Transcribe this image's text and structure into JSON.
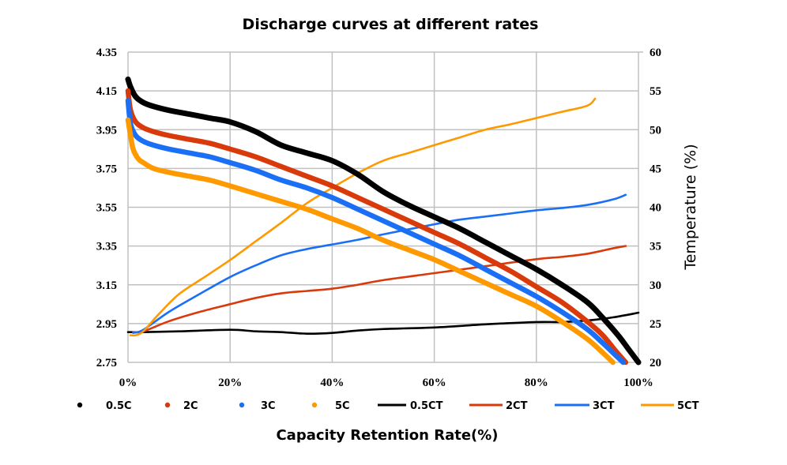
{
  "chart_data": {
    "type": "line",
    "title": "Discharge curves at different rates",
    "xlabel": "Capacity Retention Rate(%)",
    "ylabel": "",
    "y2label": "Temperature (%)",
    "xlim": [
      0,
      100
    ],
    "ylim": [
      2.75,
      4.35
    ],
    "y2lim": [
      20,
      60
    ],
    "grid": true,
    "legend_position": "bottom",
    "x_ticks": [
      "0%",
      "20%",
      "40%",
      "60%",
      "80%",
      "100%"
    ],
    "x_tick_values": [
      0,
      20,
      40,
      60,
      80,
      100
    ],
    "y_ticks": [
      "2.75",
      "2.95",
      "3.15",
      "3.35",
      "3.55",
      "3.75",
      "3.95",
      "4.15",
      "4.35"
    ],
    "y_tick_values": [
      2.75,
      2.95,
      3.15,
      3.35,
      3.55,
      3.75,
      3.95,
      4.15,
      4.35
    ],
    "y2_ticks": [
      "20",
      "25",
      "30",
      "35",
      "40",
      "45",
      "50",
      "55",
      "60"
    ],
    "y2_tick_values": [
      20,
      25,
      30,
      35,
      40,
      45,
      50,
      55,
      60
    ],
    "series": [
      {
        "name": "0.5C",
        "axis": "left",
        "style": "dots",
        "color": "#000000",
        "x": [
          0,
          0.5,
          1.5,
          3,
          5,
          8,
          12,
          16,
          20,
          25,
          30,
          35,
          40,
          45,
          50,
          55,
          60,
          65,
          70,
          75,
          80,
          85,
          90,
          93,
          96,
          98,
          100
        ],
        "y": [
          4.21,
          4.17,
          4.12,
          4.09,
          4.07,
          4.05,
          4.03,
          4.01,
          3.99,
          3.94,
          3.87,
          3.83,
          3.79,
          3.72,
          3.63,
          3.56,
          3.5,
          3.44,
          3.37,
          3.3,
          3.23,
          3.15,
          3.06,
          2.98,
          2.89,
          2.82,
          2.75
        ]
      },
      {
        "name": "2C",
        "axis": "left",
        "style": "dots",
        "color": "#d93a0b",
        "x": [
          0,
          0.5,
          1.5,
          3,
          5,
          8,
          12,
          16,
          20,
          25,
          30,
          35,
          40,
          45,
          50,
          55,
          60,
          65,
          70,
          75,
          80,
          85,
          90,
          93,
          95.5,
          97.5
        ],
        "y": [
          4.15,
          4.05,
          3.99,
          3.96,
          3.94,
          3.92,
          3.9,
          3.88,
          3.85,
          3.81,
          3.76,
          3.71,
          3.66,
          3.6,
          3.54,
          3.48,
          3.42,
          3.36,
          3.29,
          3.22,
          3.14,
          3.06,
          2.96,
          2.89,
          2.81,
          2.75
        ]
      },
      {
        "name": "3C",
        "axis": "left",
        "style": "dots",
        "color": "#1a6ff5",
        "x": [
          0,
          0.5,
          1.5,
          3,
          5,
          8,
          12,
          16,
          20,
          25,
          30,
          35,
          40,
          45,
          50,
          55,
          60,
          65,
          70,
          75,
          80,
          85,
          90,
          93,
          95,
          97
        ],
        "y": [
          4.1,
          3.98,
          3.92,
          3.89,
          3.87,
          3.85,
          3.83,
          3.81,
          3.78,
          3.74,
          3.69,
          3.65,
          3.6,
          3.54,
          3.48,
          3.42,
          3.36,
          3.3,
          3.23,
          3.16,
          3.09,
          3.01,
          2.92,
          2.85,
          2.8,
          2.75
        ]
      },
      {
        "name": "5C",
        "axis": "left",
        "style": "dots",
        "color": "#ff9900",
        "x": [
          0,
          0.5,
          1,
          2,
          3,
          5,
          8,
          12,
          16,
          20,
          25,
          30,
          35,
          40,
          45,
          50,
          55,
          60,
          65,
          70,
          75,
          80,
          85,
          90,
          93,
          95
        ],
        "y": [
          4.0,
          3.92,
          3.85,
          3.8,
          3.78,
          3.75,
          3.73,
          3.71,
          3.69,
          3.66,
          3.62,
          3.58,
          3.54,
          3.49,
          3.44,
          3.38,
          3.33,
          3.28,
          3.22,
          3.16,
          3.1,
          3.04,
          2.96,
          2.87,
          2.8,
          2.75
        ]
      },
      {
        "name": "0.5CT",
        "axis": "right",
        "style": "line",
        "color": "#000000",
        "x": [
          0,
          3,
          10,
          20,
          25,
          30,
          35,
          40,
          45,
          50,
          60,
          70,
          80,
          85,
          90,
          95,
          100
        ],
        "y": [
          23.9,
          23.9,
          24.0,
          24.2,
          24.0,
          23.9,
          23.7,
          23.8,
          24.1,
          24.3,
          24.5,
          24.9,
          25.2,
          25.2,
          25.4,
          25.8,
          26.4
        ]
      },
      {
        "name": "2CT",
        "axis": "right",
        "style": "line",
        "color": "#d93a0b",
        "x": [
          1,
          3,
          8,
          14,
          20,
          25,
          30,
          35,
          40,
          45,
          50,
          60,
          70,
          80,
          85,
          90,
          95,
          97.5
        ],
        "y": [
          23.9,
          24.0,
          25.3,
          26.5,
          27.5,
          28.3,
          28.9,
          29.2,
          29.5,
          30.0,
          30.6,
          31.5,
          32.4,
          33.3,
          33.6,
          34.0,
          34.7,
          35.0
        ]
      },
      {
        "name": "3CT",
        "axis": "right",
        "style": "line",
        "color": "#1a6ff5",
        "x": [
          1,
          3,
          8,
          14,
          20,
          25,
          30,
          35,
          40,
          45,
          50,
          60,
          65,
          70,
          75,
          80,
          85,
          90,
          95,
          97.5
        ],
        "y": [
          23.8,
          24.2,
          26.5,
          28.8,
          31.0,
          32.5,
          33.8,
          34.6,
          35.2,
          35.8,
          36.5,
          37.8,
          38.4,
          38.8,
          39.2,
          39.6,
          39.9,
          40.3,
          41.0,
          41.6
        ]
      },
      {
        "name": "5CT",
        "axis": "right",
        "style": "line",
        "color": "#ff9900",
        "x": [
          0.5,
          1.5,
          3,
          6,
          10,
          15,
          20,
          25,
          30,
          35,
          40,
          45,
          50,
          55,
          60,
          65,
          70,
          75,
          80,
          85,
          90,
          91.5
        ],
        "y": [
          23.5,
          23.5,
          24.0,
          26.2,
          28.8,
          31.0,
          33.2,
          35.6,
          38.0,
          40.5,
          42.5,
          44.4,
          46.0,
          47.0,
          48.0,
          49.0,
          50.0,
          50.7,
          51.5,
          52.3,
          53.1,
          54.0
        ]
      }
    ]
  }
}
